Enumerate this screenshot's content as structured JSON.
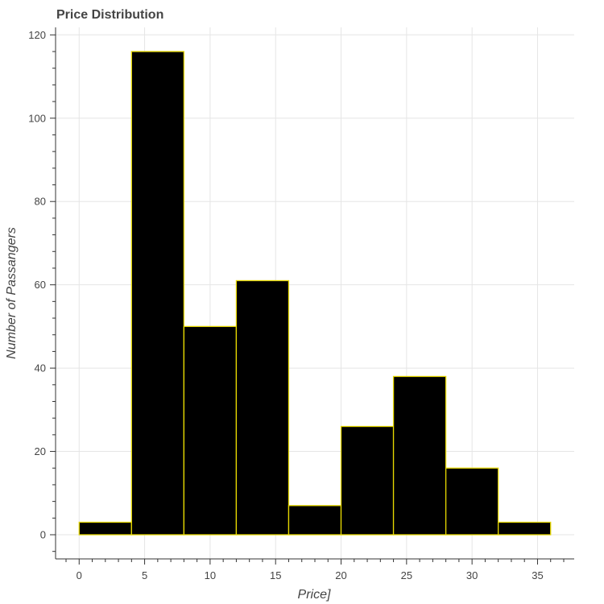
{
  "chart_data": {
    "type": "bar",
    "title": "Price Distribution",
    "xlabel": "Price]",
    "ylabel": "Number of Passangers",
    "bins": [
      {
        "start": 0,
        "end": 4,
        "value": 3
      },
      {
        "start": 4,
        "end": 8,
        "value": 116
      },
      {
        "start": 8,
        "end": 12,
        "value": 50
      },
      {
        "start": 12,
        "end": 16,
        "value": 61
      },
      {
        "start": 16,
        "end": 20,
        "value": 7
      },
      {
        "start": 20,
        "end": 24,
        "value": 26
      },
      {
        "start": 24,
        "end": 28,
        "value": 38
      },
      {
        "start": 28,
        "end": 32,
        "value": 16
      },
      {
        "start": 32,
        "end": 36,
        "value": 3
      }
    ],
    "xlim": [
      -1.8,
      37.8
    ],
    "ylim": [
      -5.8,
      121.8
    ],
    "x_ticks": [
      0,
      5,
      10,
      15,
      20,
      25,
      30,
      35
    ],
    "y_ticks": [
      0,
      20,
      40,
      60,
      80,
      100,
      120
    ],
    "grid": true,
    "bar_fill": "#000000",
    "bar_edge": "#e6d800"
  }
}
